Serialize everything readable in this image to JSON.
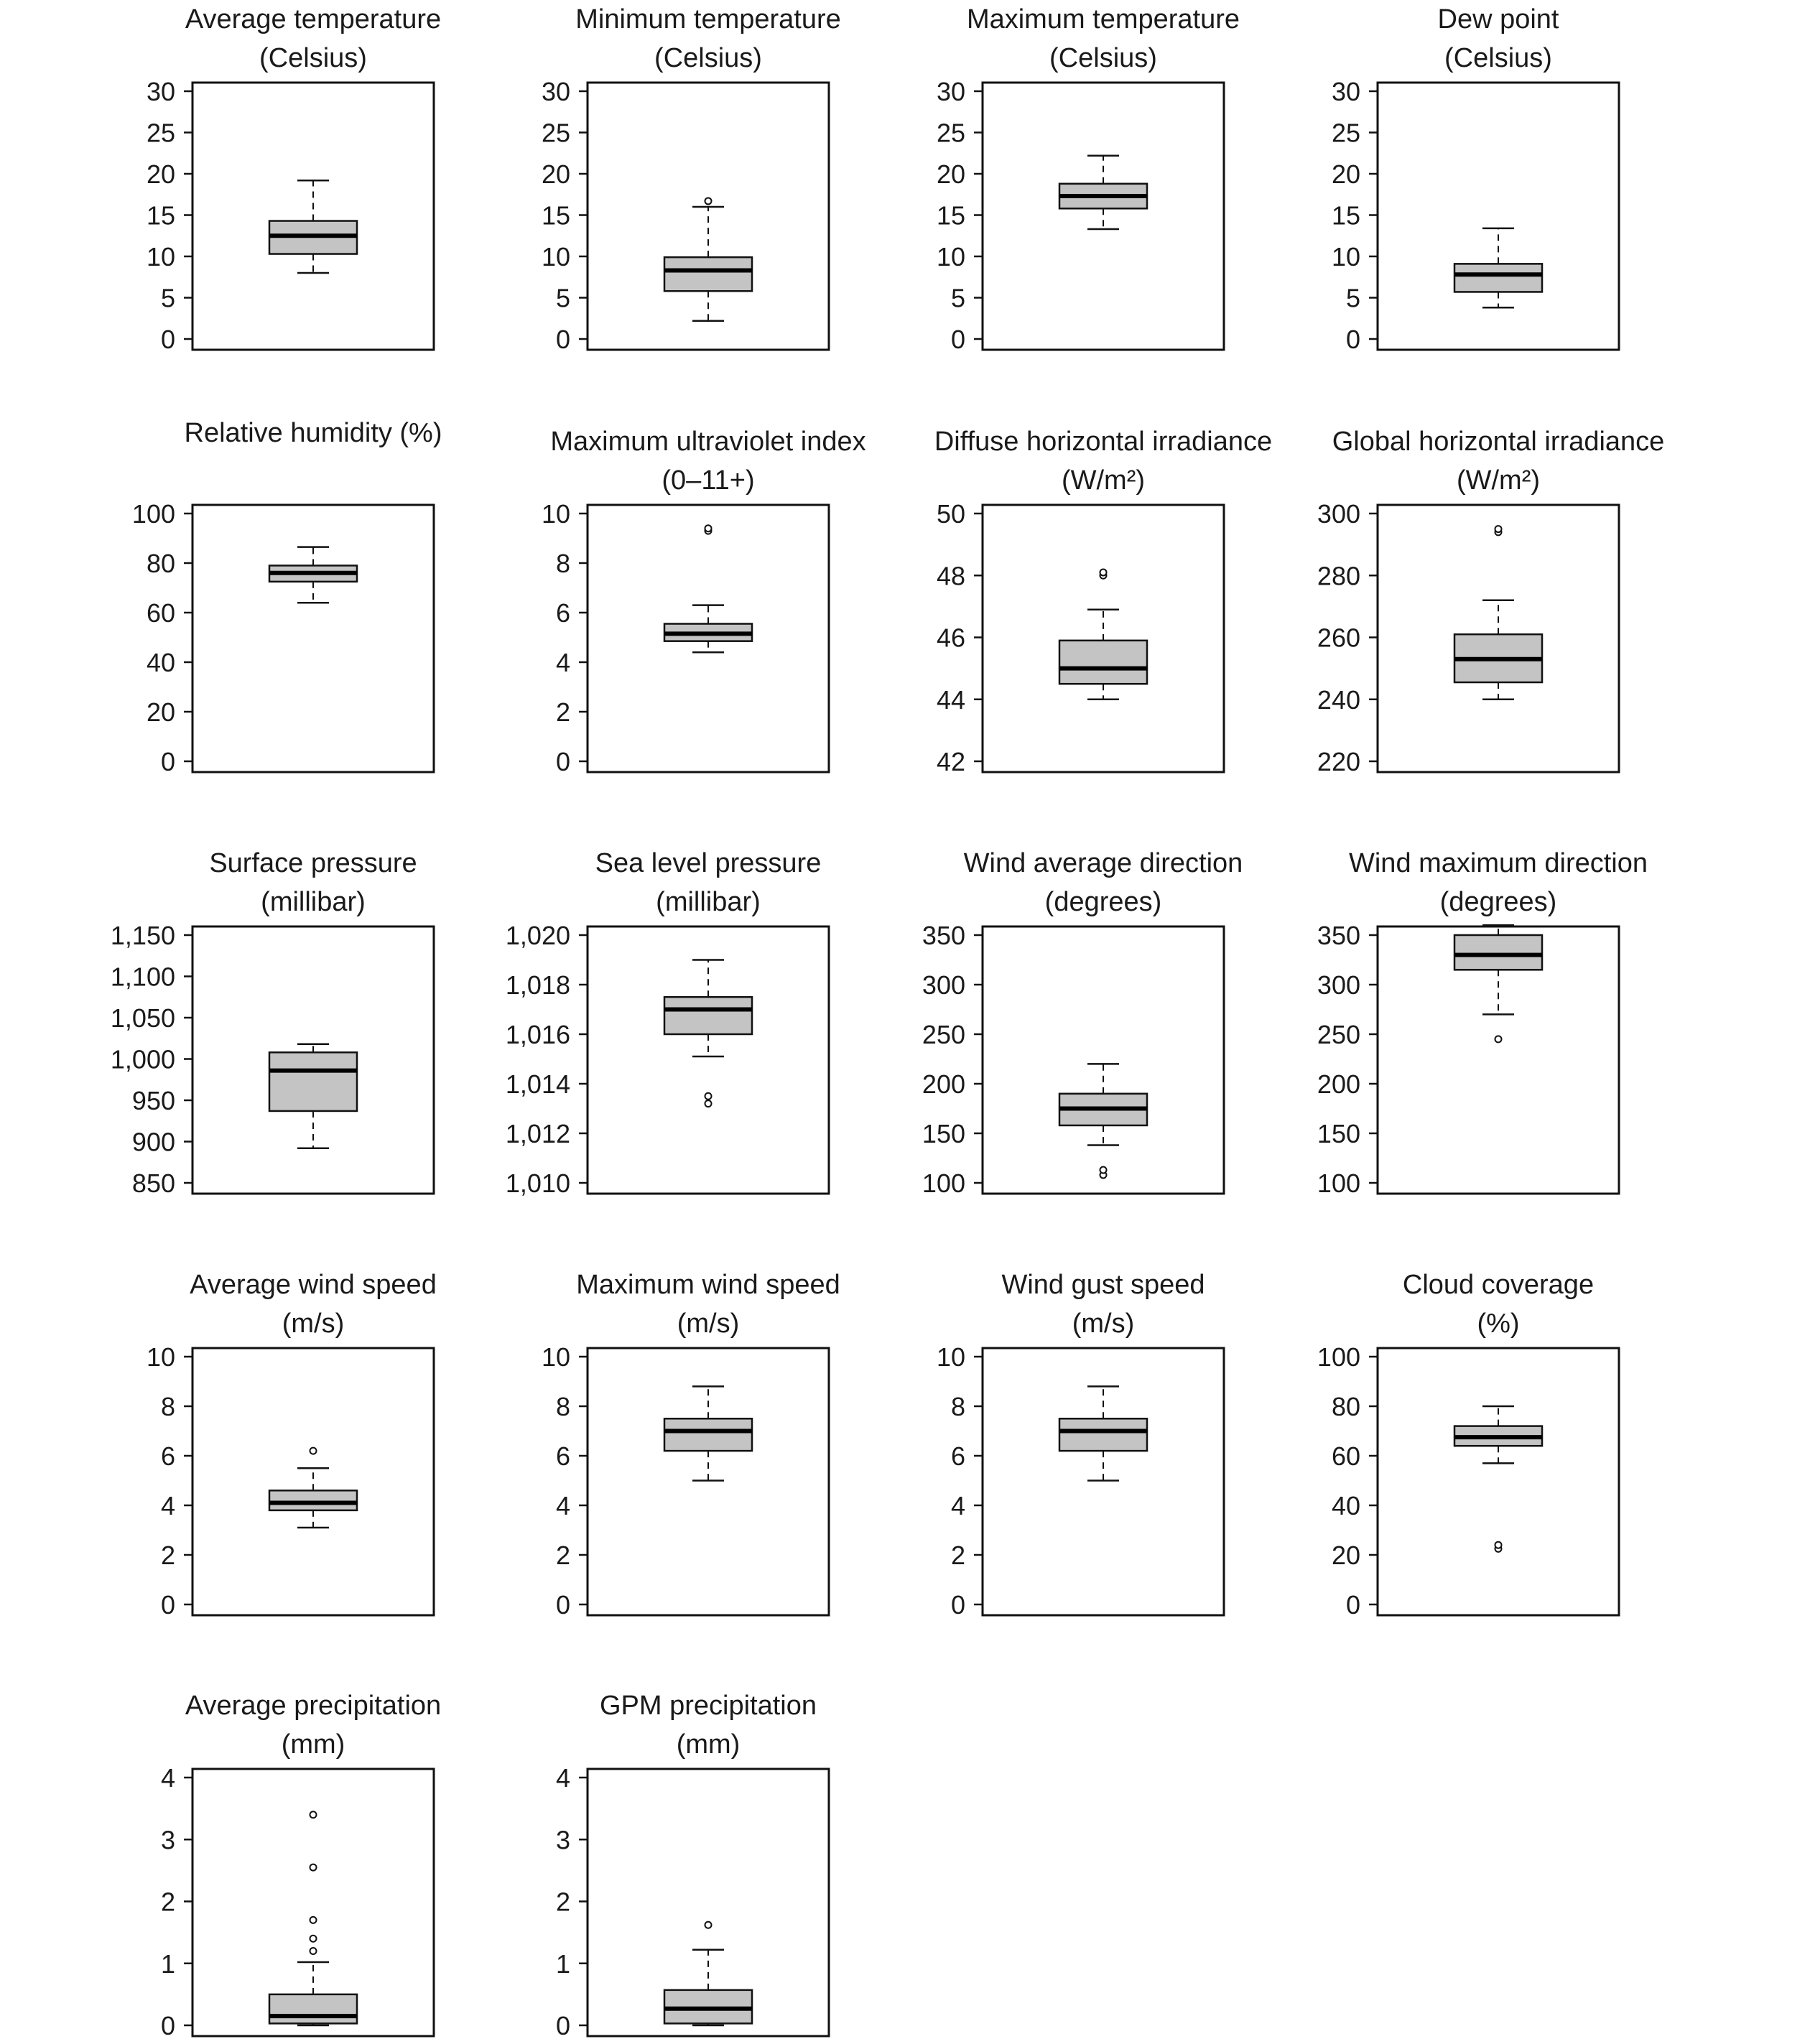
{
  "chart_data": [
    {
      "type": "box",
      "title": [
        "Average temperature",
        "(Celsius)"
      ],
      "yticks": [
        0,
        5,
        10,
        15,
        20,
        25,
        30
      ],
      "ylim": [
        0,
        30
      ],
      "box": {
        "whisker_low": 8,
        "q1": 10.3,
        "median": 12.5,
        "q3": 14.3,
        "whisker_high": 19.2
      },
      "outliers": []
    },
    {
      "type": "box",
      "title": [
        "Minimum temperature",
        "(Celsius)"
      ],
      "yticks": [
        0,
        5,
        10,
        15,
        20,
        25,
        30
      ],
      "ylim": [
        0,
        30
      ],
      "box": {
        "whisker_low": 2.2,
        "q1": 5.8,
        "median": 8.3,
        "q3": 9.9,
        "whisker_high": 16
      },
      "outliers": [
        16.7
      ]
    },
    {
      "type": "box",
      "title": [
        "Maximum temperature",
        "(Celsius)"
      ],
      "yticks": [
        0,
        5,
        10,
        15,
        20,
        25,
        30
      ],
      "ylim": [
        0,
        30
      ],
      "box": {
        "whisker_low": 13.3,
        "q1": 15.8,
        "median": 17.3,
        "q3": 18.8,
        "whisker_high": 22.2
      },
      "outliers": []
    },
    {
      "type": "box",
      "title": [
        "Dew point",
        "(Celsius)"
      ],
      "yticks": [
        0,
        5,
        10,
        15,
        20,
        25,
        30
      ],
      "ylim": [
        0,
        30
      ],
      "box": {
        "whisker_low": 3.8,
        "q1": 5.7,
        "median": 7.8,
        "q3": 9.1,
        "whisker_high": 13.4
      },
      "outliers": []
    },
    {
      "type": "box",
      "title": [
        "Relative humidity (%)"
      ],
      "yticks": [
        0,
        20,
        40,
        60,
        80,
        100
      ],
      "ylim": [
        0,
        100
      ],
      "box": {
        "whisker_low": 64,
        "q1": 72.5,
        "median": 76,
        "q3": 79,
        "whisker_high": 86.5
      },
      "outliers": []
    },
    {
      "type": "box",
      "title": [
        "Maximum ultraviolet index",
        "(0–11+)"
      ],
      "yticks": [
        0,
        2,
        4,
        6,
        8,
        10
      ],
      "ylim": [
        0,
        10
      ],
      "box": {
        "whisker_low": 4.4,
        "q1": 4.85,
        "median": 5.15,
        "q3": 5.55,
        "whisker_high": 6.3
      },
      "outliers": [
        9.3,
        9.4
      ]
    },
    {
      "type": "box",
      "title": [
        "Diffuse horizontal irradiance",
        "(W/m²)"
      ],
      "yticks": [
        42,
        44,
        46,
        48,
        50
      ],
      "ylim": [
        42,
        50
      ],
      "box": {
        "whisker_low": 44,
        "q1": 44.5,
        "median": 45,
        "q3": 45.9,
        "whisker_high": 46.9
      },
      "outliers": [
        48,
        48.1
      ]
    },
    {
      "type": "box",
      "title": [
        "Global horizontal irradiance",
        "(W/m²)"
      ],
      "yticks": [
        220,
        240,
        260,
        280,
        300
      ],
      "ylim": [
        220,
        300
      ],
      "box": {
        "whisker_low": 240,
        "q1": 245.5,
        "median": 253,
        "q3": 261,
        "whisker_high": 272
      },
      "outliers": [
        294,
        295
      ]
    },
    {
      "type": "box",
      "title": [
        "Surface pressure",
        "(millibar)"
      ],
      "yticks": [
        850,
        900,
        950,
        1000,
        1050,
        1100,
        1150
      ],
      "ytick_labels": [
        "850",
        "900",
        "950",
        "1,000",
        "1,050",
        "1,100",
        "1,150"
      ],
      "ylim": [
        850,
        1150
      ],
      "box": {
        "whisker_low": 892,
        "q1": 937,
        "median": 986,
        "q3": 1008,
        "whisker_high": 1018
      },
      "outliers": []
    },
    {
      "type": "box",
      "title": [
        "Sea level pressure",
        "(millibar)"
      ],
      "yticks": [
        1010,
        1012,
        1014,
        1016,
        1018,
        1020
      ],
      "ytick_labels": [
        "1,010",
        "1,012",
        "1,014",
        "1,016",
        "1,018",
        "1,020"
      ],
      "ylim": [
        1010,
        1020
      ],
      "box": {
        "whisker_low": 1015.1,
        "q1": 1016,
        "median": 1017,
        "q3": 1017.5,
        "whisker_high": 1019
      },
      "outliers": [
        1013.5,
        1013.2
      ]
    },
    {
      "type": "box",
      "title": [
        "Wind average direction",
        "(degrees)"
      ],
      "yticks": [
        100,
        150,
        200,
        250,
        300,
        350
      ],
      "ylim": [
        100,
        350
      ],
      "box": {
        "whisker_low": 138,
        "q1": 158,
        "median": 175,
        "q3": 190,
        "whisker_high": 220
      },
      "outliers": [
        108,
        113
      ]
    },
    {
      "type": "box",
      "title": [
        "Wind maximum direction",
        "(degrees)"
      ],
      "yticks": [
        100,
        150,
        200,
        250,
        300,
        350
      ],
      "ylim": [
        100,
        350
      ],
      "box": {
        "whisker_low": 270,
        "q1": 315,
        "median": 330,
        "q3": 350,
        "whisker_high": 360
      },
      "outliers": [
        245
      ]
    },
    {
      "type": "box",
      "title": [
        "Average wind speed",
        "(m/s)"
      ],
      "yticks": [
        0,
        2,
        4,
        6,
        8,
        10
      ],
      "ylim": [
        0,
        10
      ],
      "box": {
        "whisker_low": 3.1,
        "q1": 3.8,
        "median": 4.1,
        "q3": 4.6,
        "whisker_high": 5.5
      },
      "outliers": [
        6.2
      ]
    },
    {
      "type": "box",
      "title": [
        "Maximum wind speed",
        "(m/s)"
      ],
      "yticks": [
        0,
        2,
        4,
        6,
        8,
        10
      ],
      "ylim": [
        0,
        10
      ],
      "box": {
        "whisker_low": 5,
        "q1": 6.2,
        "median": 7,
        "q3": 7.5,
        "whisker_high": 8.8
      },
      "outliers": []
    },
    {
      "type": "box",
      "title": [
        "Wind gust speed",
        "(m/s)"
      ],
      "yticks": [
        0,
        2,
        4,
        6,
        8,
        10
      ],
      "ylim": [
        0,
        10
      ],
      "box": {
        "whisker_low": 5,
        "q1": 6.2,
        "median": 7,
        "q3": 7.5,
        "whisker_high": 8.8
      },
      "outliers": []
    },
    {
      "type": "box",
      "title": [
        "Cloud coverage",
        "(%)"
      ],
      "yticks": [
        0,
        20,
        40,
        60,
        80,
        100
      ],
      "ylim": [
        0,
        100
      ],
      "box": {
        "whisker_low": 57,
        "q1": 64,
        "median": 67.5,
        "q3": 72,
        "whisker_high": 80
      },
      "outliers": [
        22.5,
        24
      ]
    },
    {
      "type": "box",
      "title": [
        "Average precipitation",
        "(mm)"
      ],
      "yticks": [
        0,
        1,
        2,
        3,
        4
      ],
      "ylim": [
        0,
        4
      ],
      "box": {
        "whisker_low": 0,
        "q1": 0.03,
        "median": 0.15,
        "q3": 0.5,
        "whisker_high": 1.02
      },
      "outliers": [
        1.2,
        1.4,
        1.7,
        2.55,
        3.4
      ]
    },
    {
      "type": "box",
      "title": [
        "GPM precipitation",
        "(mm)"
      ],
      "yticks": [
        0,
        1,
        2,
        3,
        4
      ],
      "ylim": [
        0,
        4
      ],
      "box": {
        "whisker_low": 0,
        "q1": 0.03,
        "median": 0.27,
        "q3": 0.57,
        "whisker_high": 1.22
      },
      "outliers": [
        1.62
      ]
    }
  ]
}
